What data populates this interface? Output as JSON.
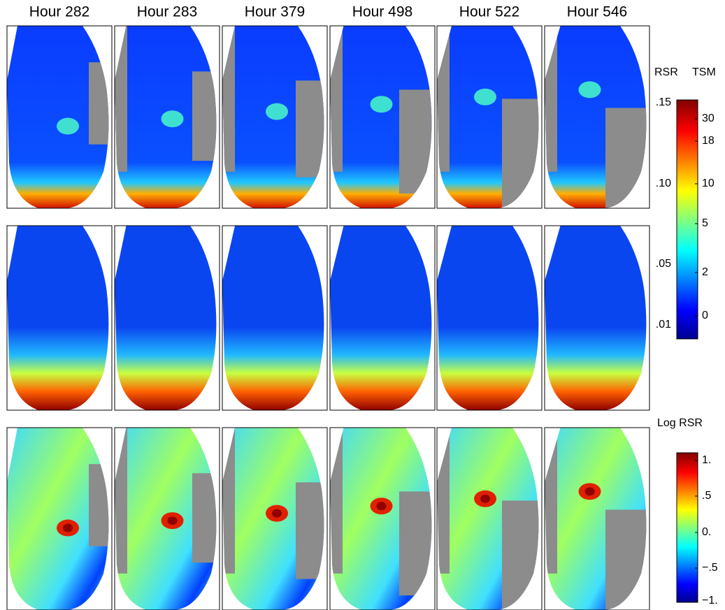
{
  "columns": [
    "Hour 282",
    "Hour 283",
    "Hour 379",
    "Hour 498",
    "Hour 522",
    "Hour 546"
  ],
  "colorbar_top": {
    "left_title": "RSR",
    "right_title": "TSM",
    "left_ticks": [
      ".15",
      ".10",
      ".05",
      ".01"
    ],
    "right_ticks": [
      "30",
      "18",
      "10",
      "5",
      "2",
      "0"
    ]
  },
  "colorbar_bottom": {
    "title": "Log RSR",
    "ticks": [
      "1.",
      ".5",
      "0.",
      "−.5",
      "−1."
    ]
  }
}
